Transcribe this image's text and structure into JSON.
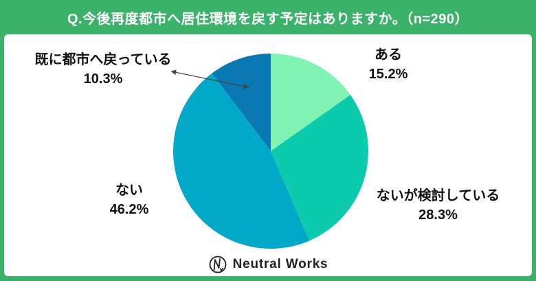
{
  "header": {
    "title": "Q.今後再度都市へ居住環境を戻す予定はありますか。（n=290）"
  },
  "chart_data": {
    "type": "pie",
    "title": "今後再度都市へ居住環境を戻す予定はありますか",
    "sample_size_text": "n=290",
    "start_angle_deg": 0,
    "direction": "clockwise",
    "legend_position": "callout-labels",
    "slices": [
      {
        "label": "ある",
        "value": 15.2,
        "pct_text": "15.2%",
        "color": "#80F3B4"
      },
      {
        "label": "ないが検討している",
        "value": 28.3,
        "pct_text": "28.3%",
        "color": "#0CCBAD"
      },
      {
        "label": "ない",
        "value": 46.2,
        "pct_text": "46.2%",
        "color": "#02A8C8"
      },
      {
        "label": "既に都市へ戻っている",
        "value": 10.3,
        "pct_text": "10.3%",
        "color": "#0A78B2"
      }
    ]
  },
  "colors": {
    "frame_green": "#3BB269",
    "panel_white": "#ffffff",
    "label_text": "#111111",
    "arrow": "#444444"
  },
  "footer": {
    "brand": "Neutral Works"
  }
}
